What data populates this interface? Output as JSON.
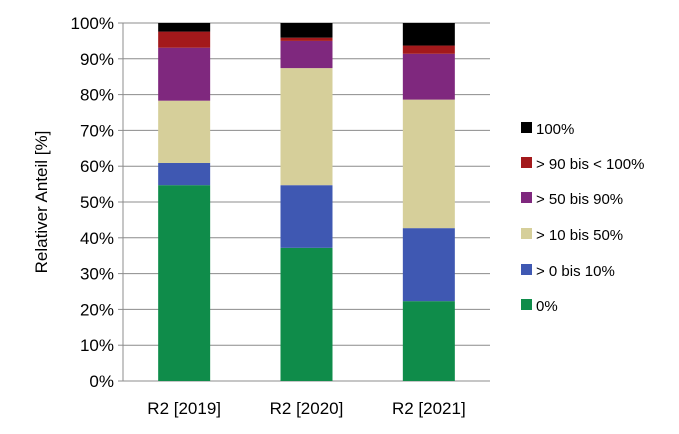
{
  "chart_data": {
    "type": "bar",
    "stacked": true,
    "title": "",
    "xlabel": "",
    "ylabel": "Relativer Anteil [%]",
    "ylim": [
      0,
      100
    ],
    "yticks": [
      "0%",
      "10%",
      "20%",
      "30%",
      "40%",
      "50%",
      "60%",
      "70%",
      "80%",
      "90%",
      "100%"
    ],
    "grid": true,
    "legend_position": "right",
    "categories": [
      "R2 [2019]",
      "R2 [2020]",
      "R2 [2021]"
    ],
    "series": [
      {
        "name": "0%",
        "color": "#0f8c4a",
        "values": [
          54.7,
          37.2,
          22.3
        ]
      },
      {
        "name": "> 0 bis 10%",
        "color": "#3f58b2",
        "values": [
          6.2,
          17.5,
          20.4
        ]
      },
      {
        "name": "> 10 bis 50%",
        "color": "#d6cf9a",
        "values": [
          17.4,
          32.7,
          35.9
        ]
      },
      {
        "name": "> 50 bis 90%",
        "color": "#7f287e",
        "values": [
          14.8,
          7.6,
          12.8
        ]
      },
      {
        "name": "> 90 bis < 100%",
        "color": "#a3191b",
        "values": [
          4.5,
          0.9,
          2.3
        ]
      },
      {
        "name": "100%",
        "color": "#000000",
        "values": [
          2.4,
          4.1,
          6.3
        ]
      }
    ]
  }
}
